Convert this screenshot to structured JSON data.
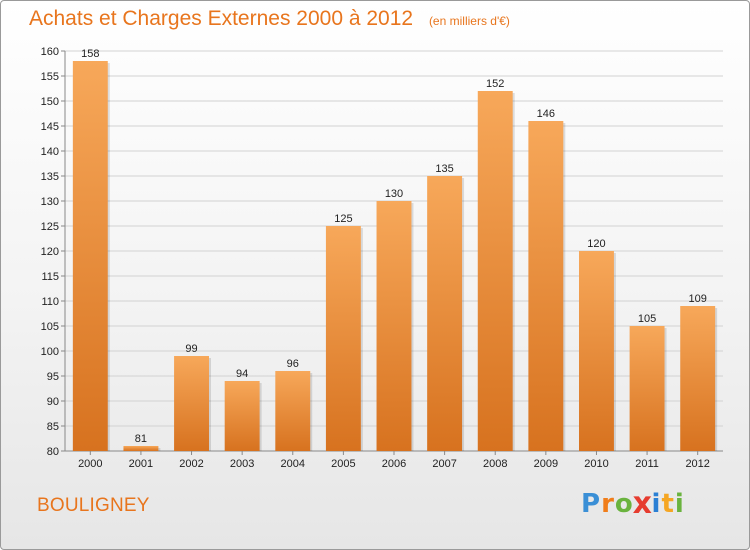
{
  "title": "Achats et Charges Externes 2000 à 2012",
  "subtitle": "(en milliers d'€)",
  "commune": "BOULIGNEY",
  "logo": {
    "letters": [
      "P",
      "r",
      "o",
      "x",
      "i",
      "t",
      "i"
    ],
    "colors": [
      "#3a8fd6",
      "#f07d1a",
      "#6ab33e",
      "#e63c2f",
      "#2a7fd4",
      "#f5a623",
      "#6ab33e"
    ]
  },
  "colors": {
    "bar_light": "#f7a85a",
    "bar_dark": "#d7721f",
    "accent": "#e8751d"
  },
  "chart_data": {
    "type": "bar",
    "title": "Achats et Charges Externes 2000 à 2012",
    "subtitle": "(en milliers d'€)",
    "categories": [
      "2000",
      "2001",
      "2002",
      "2003",
      "2004",
      "2005",
      "2006",
      "2007",
      "2008",
      "2009",
      "2010",
      "2011",
      "2012"
    ],
    "values": [
      158,
      81,
      99,
      94,
      96,
      125,
      130,
      135,
      152,
      146,
      120,
      105,
      109
    ],
    "ylim": [
      80,
      160
    ],
    "yticks": [
      80,
      85,
      90,
      95,
      100,
      105,
      110,
      115,
      120,
      125,
      130,
      135,
      140,
      145,
      150,
      155,
      160
    ],
    "grid": true,
    "xlabel": "",
    "ylabel": ""
  }
}
